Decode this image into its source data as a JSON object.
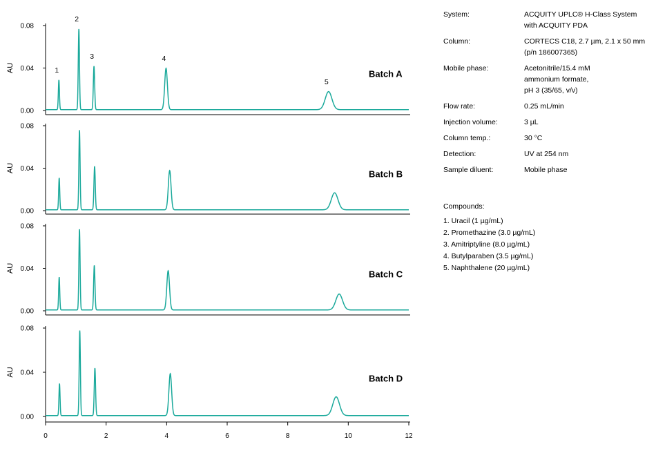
{
  "chart_data": {
    "type": "line",
    "line_color": "#1aa99b",
    "x_unit": "min",
    "xlim": [
      0,
      12
    ],
    "x_ticks": [
      "0",
      "2",
      "4",
      "6",
      "8",
      "10",
      "12"
    ],
    "ylabel": "AU",
    "ylim": [
      0,
      0.08
    ],
    "y_ticks": [
      "0.00",
      "0.04",
      "0.08"
    ],
    "peak_labels": [
      "1",
      "2",
      "3",
      "4",
      "5"
    ],
    "series": [
      {
        "name": "Batch A",
        "peaks": [
          {
            "rt": 0.44,
            "height": 0.028,
            "width": 0.018
          },
          {
            "rt": 1.1,
            "height": 0.076,
            "width": 0.02
          },
          {
            "rt": 1.6,
            "height": 0.041,
            "width": 0.022
          },
          {
            "rt": 3.98,
            "height": 0.039,
            "width": 0.045
          },
          {
            "rt": 9.35,
            "height": 0.017,
            "width": 0.11
          }
        ]
      },
      {
        "name": "Batch B",
        "peaks": [
          {
            "rt": 0.45,
            "height": 0.03,
            "width": 0.018
          },
          {
            "rt": 1.12,
            "height": 0.075,
            "width": 0.02
          },
          {
            "rt": 1.62,
            "height": 0.041,
            "width": 0.022
          },
          {
            "rt": 4.1,
            "height": 0.037,
            "width": 0.045
          },
          {
            "rt": 9.55,
            "height": 0.016,
            "width": 0.11
          }
        ]
      },
      {
        "name": "Batch C",
        "peaks": [
          {
            "rt": 0.45,
            "height": 0.031,
            "width": 0.018
          },
          {
            "rt": 1.12,
            "height": 0.076,
            "width": 0.02
          },
          {
            "rt": 1.61,
            "height": 0.042,
            "width": 0.022
          },
          {
            "rt": 4.05,
            "height": 0.037,
            "width": 0.045
          },
          {
            "rt": 9.7,
            "height": 0.015,
            "width": 0.11
          }
        ]
      },
      {
        "name": "Batch D",
        "peaks": [
          {
            "rt": 0.46,
            "height": 0.029,
            "width": 0.018
          },
          {
            "rt": 1.13,
            "height": 0.077,
            "width": 0.02
          },
          {
            "rt": 1.63,
            "height": 0.043,
            "width": 0.022
          },
          {
            "rt": 4.12,
            "height": 0.038,
            "width": 0.045
          },
          {
            "rt": 9.6,
            "height": 0.017,
            "width": 0.11
          }
        ]
      }
    ]
  },
  "conditions": [
    {
      "key": "System:",
      "lines": [
        "ACQUITY UPLC® H-Class System",
        "with ACQUITY PDA"
      ]
    },
    {
      "key": "Column:",
      "lines": [
        "CORTECS C18, 2.7 µm, 2.1 x 50 mm",
        "(p/n 186007365)"
      ]
    },
    {
      "key": "Mobile phase:",
      "lines": [
        "Acetonitrile/15.4 mM",
        "ammonium formate,",
        "pH 3 (35/65, v/v)"
      ]
    },
    {
      "key": "Flow rate:",
      "lines": [
        "0.25 mL/min"
      ]
    },
    {
      "key": "Injection volume:",
      "lines": [
        "3 µL"
      ]
    },
    {
      "key": "Column temp.:",
      "lines": [
        "30 °C"
      ]
    },
    {
      "key": "Detection:",
      "lines": [
        "UV at 254 nm"
      ]
    },
    {
      "key": "Sample diluent:",
      "lines": [
        "Mobile phase"
      ]
    }
  ],
  "compounds": {
    "title": "Compounds:",
    "items": [
      "1. Uracil (1 µg/mL)",
      "2. Promethazine (3.0 µg/mL)",
      "3. Amitriptyline (8.0 µg/mL)",
      "4. Butylparaben (3.5 µg/mL)",
      "5. Naphthalene (20 µg/mL)"
    ]
  }
}
